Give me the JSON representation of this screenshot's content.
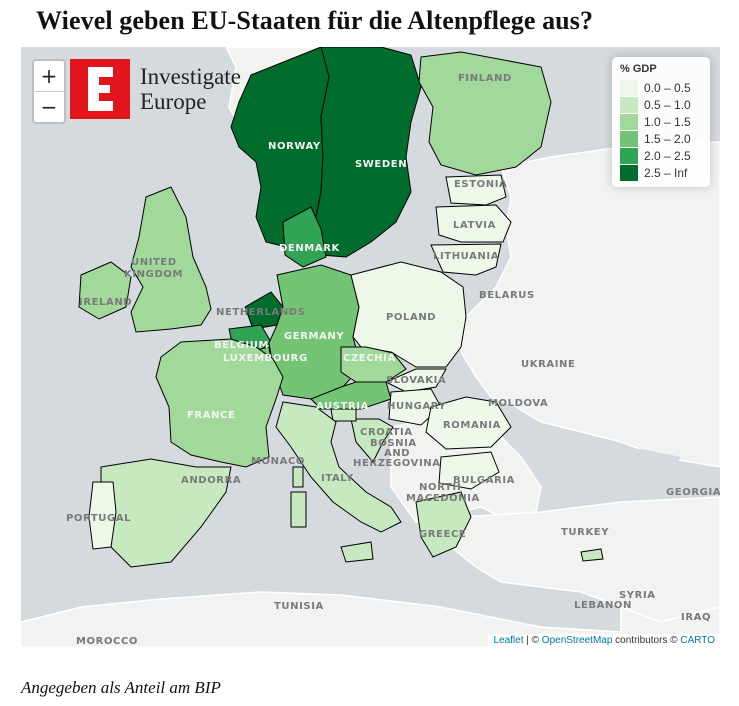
{
  "title": "Wievel geben EU-Staaten für die Altenpflege aus?",
  "caption": "Angegeben als Anteil am BIP",
  "zoom": {
    "in_label": "+",
    "out_label": "−"
  },
  "logo": {
    "letter": "E",
    "line1": "Investigate",
    "line2": "Europe"
  },
  "legend": {
    "title": "% GDP",
    "items": [
      {
        "label": "0.0 – 0.5",
        "color": "#edf8e9"
      },
      {
        "label": "0.5 – 1.0",
        "color": "#c7e9c0"
      },
      {
        "label": "1.0 – 1.5",
        "color": "#a1d99b"
      },
      {
        "label": "1.5 – 2.0",
        "color": "#74c476"
      },
      {
        "label": "2.0 – 2.5",
        "color": "#31a354"
      },
      {
        "label": "2.5 – Inf",
        "color": "#006d2c"
      }
    ]
  },
  "attribution": {
    "leaflet": "Leaflet",
    "sep1": " | © ",
    "osm": "OpenStreetMap",
    "contrib": " contributors © ",
    "carto": "CARTO"
  },
  "labels": {
    "finland": "FINLAND",
    "norway": "NORWAY",
    "sweden": "SWEDEN",
    "estonia": "ESTONIA",
    "latvia": "LATVIA",
    "lithuania": "LITHUANIA",
    "denmark": "DENMARK",
    "united1": "UNITED",
    "united2": "KINGDOM",
    "ireland": "IRELAND",
    "netherlands": "NETHERLANDS",
    "belarus": "BELARUS",
    "poland": "POLAND",
    "germany": "GERMANY",
    "belgium": "BELGIUM",
    "luxembourg": "LUXEMBOURG",
    "czechia": "CZECHIA",
    "ukraine": "UKRAINE",
    "slovakia": "SLOVAKIA",
    "france": "FRANCE",
    "austria": "AUSTRIA",
    "hungary": "HUNGARY",
    "moldova": "MOLDOVA",
    "romania": "ROMANIA",
    "croatia": "CROATIA",
    "bosnia1": "BOSNIA",
    "bosnia2": "AND",
    "bosnia3": "HERZEGOVINA",
    "monaco": "MONACO",
    "andorra": "ANDORRA",
    "italy": "ITALY",
    "bulgaria": "BULGARIA",
    "northmac1": "NORTH",
    "northmac2": "MACEDONIA",
    "georgia": "GEORGIA",
    "portugal": "PORTUGAL",
    "turkey": "TURKEY",
    "greece": "GREECE",
    "syria": "SYRIA",
    "lebanon": "LEBANON",
    "tunisia": "TUNISIA",
    "iraq": "IRAQ",
    "morocco": "MOROCCO"
  }
}
